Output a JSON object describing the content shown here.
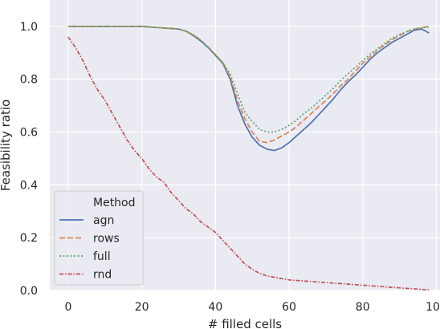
{
  "chart_data": {
    "type": "line",
    "xlabel": "# filled cells",
    "ylabel": "Feasibility ratio",
    "xlim": [
      -5,
      101
    ],
    "ylim": [
      0.0,
      1.1
    ],
    "xticks": [
      0,
      20,
      40,
      60,
      80,
      100
    ],
    "yticks": [
      0.0,
      0.2,
      0.4,
      0.6,
      0.8,
      1.0
    ],
    "grid": true,
    "legend": {
      "title": "Method",
      "placement": "lower-left"
    },
    "x": [
      0,
      2,
      4,
      6,
      8,
      10,
      12,
      14,
      16,
      18,
      20,
      22,
      24,
      26,
      28,
      30,
      32,
      34,
      36,
      38,
      40,
      42,
      44,
      46,
      48,
      50,
      52,
      54,
      56,
      58,
      60,
      62,
      64,
      66,
      68,
      70,
      72,
      74,
      76,
      78,
      80,
      82,
      84,
      86,
      88,
      90,
      92,
      94,
      96,
      98
    ],
    "series": [
      {
        "name": "agn",
        "color": "#4c72b0",
        "dash": "solid",
        "values": [
          1.0,
          1.0,
          1.0,
          1.0,
          1.0,
          1.0,
          1.0,
          1.0,
          1.0,
          1.0,
          1.0,
          0.998,
          0.996,
          0.994,
          0.992,
          0.99,
          0.982,
          0.965,
          0.945,
          0.92,
          0.89,
          0.86,
          0.8,
          0.7,
          0.63,
          0.58,
          0.55,
          0.535,
          0.53,
          0.54,
          0.56,
          0.585,
          0.61,
          0.635,
          0.665,
          0.695,
          0.725,
          0.76,
          0.79,
          0.815,
          0.845,
          0.875,
          0.9,
          0.92,
          0.94,
          0.955,
          0.97,
          0.985,
          0.99,
          0.975
        ]
      },
      {
        "name": "rows",
        "color": "#dd8452",
        "dash": "dashed",
        "values": [
          1.0,
          1.0,
          1.0,
          1.0,
          1.0,
          1.0,
          1.0,
          1.0,
          1.0,
          1.0,
          1.0,
          0.998,
          0.996,
          0.994,
          0.992,
          0.99,
          0.982,
          0.968,
          0.948,
          0.922,
          0.893,
          0.863,
          0.81,
          0.72,
          0.65,
          0.6,
          0.565,
          0.56,
          0.57,
          0.585,
          0.6,
          0.62,
          0.645,
          0.67,
          0.695,
          0.72,
          0.745,
          0.775,
          0.8,
          0.83,
          0.86,
          0.885,
          0.91,
          0.93,
          0.95,
          0.965,
          0.98,
          0.99,
          0.995,
          1.0
        ]
      },
      {
        "name": "full",
        "color": "#55a868",
        "dash": "dotted",
        "values": [
          1.0,
          1.0,
          1.0,
          1.0,
          1.0,
          1.0,
          1.0,
          1.0,
          1.0,
          1.0,
          1.0,
          0.998,
          0.996,
          0.994,
          0.992,
          0.99,
          0.982,
          0.968,
          0.948,
          0.922,
          0.893,
          0.863,
          0.82,
          0.745,
          0.675,
          0.64,
          0.61,
          0.6,
          0.6,
          0.61,
          0.625,
          0.645,
          0.67,
          0.69,
          0.715,
          0.74,
          0.765,
          0.795,
          0.82,
          0.845,
          0.87,
          0.895,
          0.915,
          0.935,
          0.955,
          0.97,
          0.98,
          0.99,
          0.995,
          0.998
        ]
      },
      {
        "name": "rnd",
        "color": "#c44e52",
        "dash": "dashdot",
        "values": [
          0.96,
          0.92,
          0.87,
          0.81,
          0.76,
          0.72,
          0.67,
          0.62,
          0.57,
          0.53,
          0.5,
          0.46,
          0.43,
          0.41,
          0.37,
          0.34,
          0.31,
          0.29,
          0.26,
          0.24,
          0.22,
          0.19,
          0.16,
          0.13,
          0.1,
          0.08,
          0.065,
          0.055,
          0.05,
          0.045,
          0.04,
          0.038,
          0.036,
          0.034,
          0.032,
          0.03,
          0.028,
          0.026,
          0.024,
          0.022,
          0.02,
          0.018,
          0.016,
          0.014,
          0.012,
          0.01,
          0.008,
          0.006,
          0.004,
          0.002
        ]
      }
    ]
  }
}
